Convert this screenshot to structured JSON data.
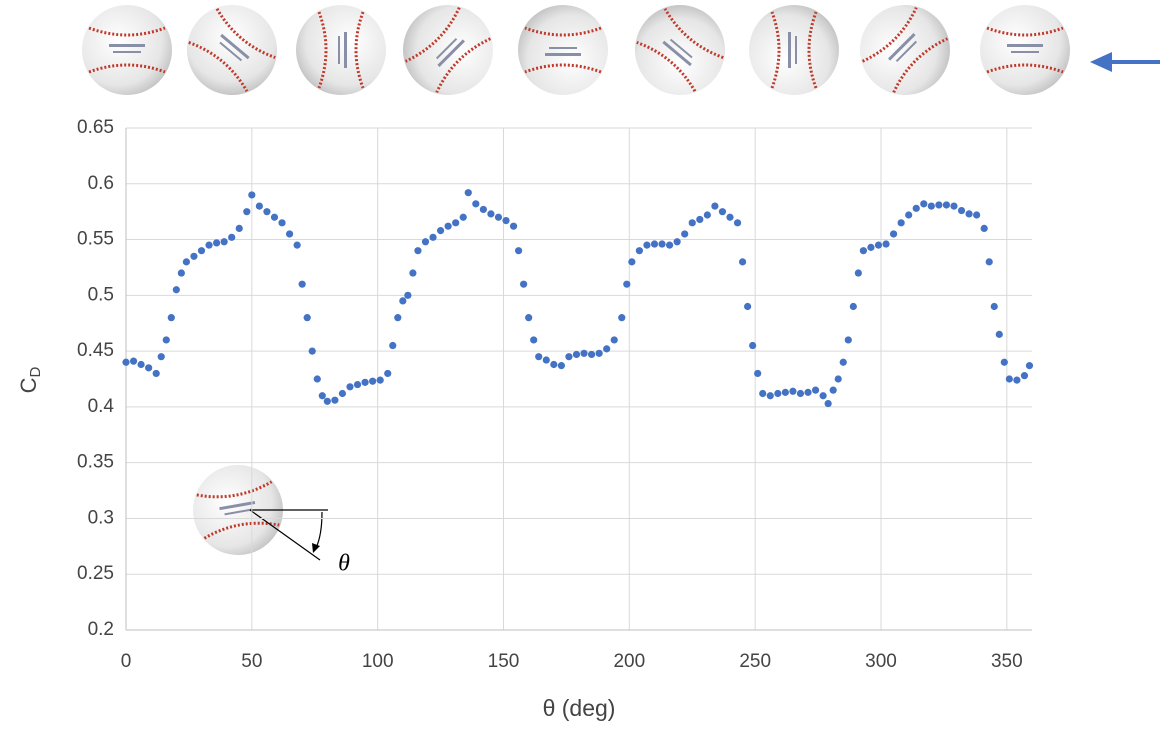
{
  "chart_data": {
    "type": "scatter",
    "x_label": "θ (deg)",
    "y_label": "C",
    "y_label_sub": "D",
    "annotation": "θ",
    "color": "#4472c4",
    "grid": true,
    "xlim": [
      0,
      360
    ],
    "xticks": [
      0,
      50,
      100,
      150,
      200,
      250,
      300,
      350
    ],
    "ylim": [
      0.2,
      0.65
    ],
    "yticks": [
      0.2,
      0.25,
      0.3,
      0.35,
      0.4,
      0.45,
      0.5,
      0.55,
      0.6,
      0.65
    ],
    "x": [
      0,
      3,
      6,
      9,
      12,
      14,
      16,
      18,
      20,
      22,
      24,
      27,
      30,
      33,
      36,
      39,
      42,
      45,
      48,
      50,
      53,
      56,
      59,
      62,
      65,
      68,
      70,
      72,
      74,
      76,
      78,
      80,
      83,
      86,
      89,
      92,
      95,
      98,
      101,
      104,
      106,
      108,
      110,
      112,
      114,
      116,
      119,
      122,
      125,
      128,
      131,
      134,
      136,
      139,
      142,
      145,
      148,
      151,
      154,
      156,
      158,
      160,
      162,
      164,
      167,
      170,
      173,
      176,
      179,
      182,
      185,
      188,
      191,
      194,
      197,
      199,
      201,
      204,
      207,
      210,
      213,
      216,
      219,
      222,
      225,
      228,
      231,
      234,
      237,
      240,
      243,
      245,
      247,
      249,
      251,
      253,
      256,
      259,
      262,
      265,
      268,
      271,
      274,
      277,
      279,
      281,
      283,
      285,
      287,
      289,
      291,
      293,
      296,
      299,
      302,
      305,
      308,
      311,
      314,
      317,
      320,
      323,
      326,
      329,
      332,
      335,
      338,
      341,
      343,
      345,
      347,
      349,
      351,
      354,
      357,
      359
    ],
    "y": [
      0.44,
      0.441,
      0.438,
      0.435,
      0.43,
      0.445,
      0.46,
      0.48,
      0.505,
      0.52,
      0.53,
      0.535,
      0.54,
      0.545,
      0.547,
      0.548,
      0.552,
      0.56,
      0.575,
      0.59,
      0.58,
      0.575,
      0.57,
      0.565,
      0.555,
      0.545,
      0.51,
      0.48,
      0.45,
      0.425,
      0.41,
      0.405,
      0.406,
      0.412,
      0.418,
      0.42,
      0.422,
      0.423,
      0.424,
      0.43,
      0.455,
      0.48,
      0.495,
      0.5,
      0.52,
      0.54,
      0.548,
      0.552,
      0.558,
      0.562,
      0.565,
      0.57,
      0.592,
      0.582,
      0.577,
      0.573,
      0.57,
      0.567,
      0.562,
      0.54,
      0.51,
      0.48,
      0.46,
      0.445,
      0.442,
      0.438,
      0.437,
      0.445,
      0.447,
      0.448,
      0.447,
      0.448,
      0.452,
      0.46,
      0.48,
      0.51,
      0.53,
      0.54,
      0.545,
      0.546,
      0.546,
      0.545,
      0.548,
      0.555,
      0.565,
      0.568,
      0.572,
      0.58,
      0.575,
      0.57,
      0.565,
      0.53,
      0.49,
      0.455,
      0.43,
      0.412,
      0.41,
      0.412,
      0.413,
      0.414,
      0.412,
      0.413,
      0.415,
      0.41,
      0.403,
      0.415,
      0.425,
      0.44,
      0.46,
      0.49,
      0.52,
      0.54,
      0.543,
      0.545,
      0.546,
      0.555,
      0.565,
      0.572,
      0.578,
      0.582,
      0.58,
      0.581,
      0.581,
      0.58,
      0.576,
      0.573,
      0.572,
      0.56,
      0.53,
      0.49,
      0.465,
      0.44,
      0.425,
      0.424,
      0.428,
      0.437
    ]
  }
}
